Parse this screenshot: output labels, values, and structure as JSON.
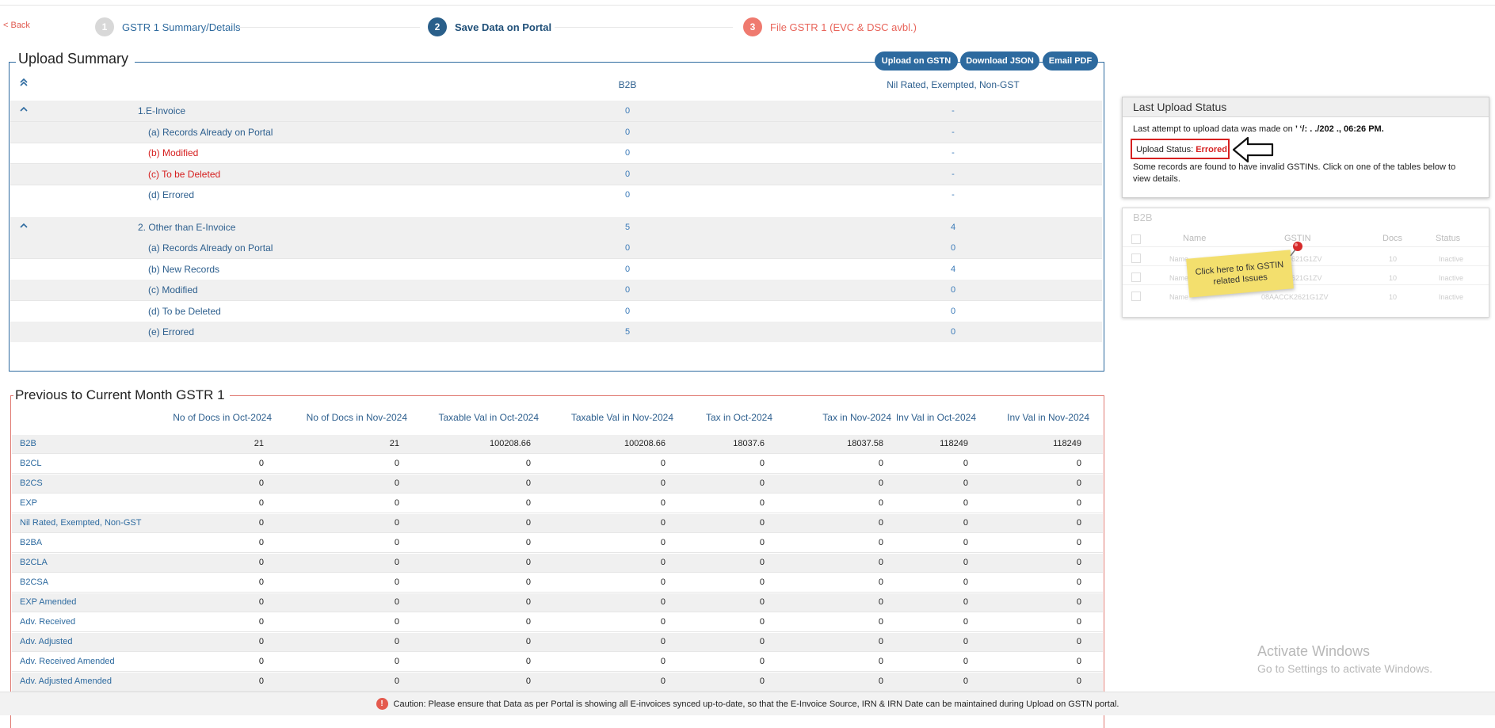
{
  "nav": {
    "back_label": "< Back",
    "steps": [
      {
        "num": "1",
        "label": "GSTR 1 Summary/Details"
      },
      {
        "num": "2",
        "label": "Save Data on Portal"
      },
      {
        "num": "3",
        "label": "File GSTR 1 (EVC & DSC avbl.)"
      }
    ]
  },
  "upload_summary": {
    "title": "Upload Summary",
    "buttons": {
      "upload": "Upload on GSTN",
      "download": "Download JSON",
      "email": "Email PDF"
    },
    "col1_header": "B2B",
    "col2_header": "Nil Rated, Exempted, Non-GST",
    "rows": [
      {
        "label": "1.E-Invoice",
        "v1": "0",
        "v2": "-"
      },
      {
        "label": "(a) Records Already on Portal",
        "v1": "0",
        "v2": "-"
      },
      {
        "label": "(b) Modified",
        "v1": "0",
        "v2": "-"
      },
      {
        "label": "(c) To be Deleted",
        "v1": "0",
        "v2": "-"
      },
      {
        "label": "(d) Errored",
        "v1": "0",
        "v2": "-"
      },
      {
        "label": "2. Other than E-Invoice",
        "v1": "5",
        "v2": "4"
      },
      {
        "label": "(a) Records Already on Portal",
        "v1": "0",
        "v2": "0"
      },
      {
        "label": "(b) New Records",
        "v1": "0",
        "v2": "4"
      },
      {
        "label": "(c) Modified",
        "v1": "0",
        "v2": "0"
      },
      {
        "label": "(d) To be Deleted",
        "v1": "0",
        "v2": "0"
      },
      {
        "label": "(e) Errored",
        "v1": "5",
        "v2": "0"
      }
    ]
  },
  "prev_month": {
    "title": "Previous to Current Month GSTR 1",
    "headers": [
      "No of Docs in Oct-2024",
      "No of Docs in Nov-2024",
      "Taxable Val in Oct-2024",
      "Taxable Val in Nov-2024",
      "Tax in Oct-2024",
      "Tax in Nov-2024",
      "Inv Val in Oct-2024",
      "Inv Val in Nov-2024"
    ],
    "rows": [
      {
        "label": "B2B",
        "cells": [
          "21",
          "21",
          "100208.66",
          "100208.66",
          "18037.6",
          "18037.58",
          "118249",
          "118249"
        ]
      },
      {
        "label": "B2CL",
        "cells": [
          "0",
          "0",
          "0",
          "0",
          "0",
          "0",
          "0",
          "0"
        ]
      },
      {
        "label": "B2CS",
        "cells": [
          "0",
          "0",
          "0",
          "0",
          "0",
          "0",
          "0",
          "0"
        ]
      },
      {
        "label": "EXP",
        "cells": [
          "0",
          "0",
          "0",
          "0",
          "0",
          "0",
          "0",
          "0"
        ]
      },
      {
        "label": "Nil Rated, Exempted, Non-GST",
        "cells": [
          "0",
          "0",
          "0",
          "0",
          "0",
          "0",
          "0",
          "0"
        ]
      },
      {
        "label": "B2BA",
        "cells": [
          "0",
          "0",
          "0",
          "0",
          "0",
          "0",
          "0",
          "0"
        ]
      },
      {
        "label": "B2CLA",
        "cells": [
          "0",
          "0",
          "0",
          "0",
          "0",
          "0",
          "0",
          "0"
        ]
      },
      {
        "label": "B2CSA",
        "cells": [
          "0",
          "0",
          "0",
          "0",
          "0",
          "0",
          "0",
          "0"
        ]
      },
      {
        "label": "EXP Amended",
        "cells": [
          "0",
          "0",
          "0",
          "0",
          "0",
          "0",
          "0",
          "0"
        ]
      },
      {
        "label": "Adv. Received",
        "cells": [
          "0",
          "0",
          "0",
          "0",
          "0",
          "0",
          "0",
          "0"
        ]
      },
      {
        "label": "Adv. Adjusted",
        "cells": [
          "0",
          "0",
          "0",
          "0",
          "0",
          "0",
          "0",
          "0"
        ]
      },
      {
        "label": "Adv. Received Amended",
        "cells": [
          "0",
          "0",
          "0",
          "0",
          "0",
          "0",
          "0",
          "0"
        ]
      },
      {
        "label": "Adv. Adjusted Amended",
        "cells": [
          "0",
          "0",
          "0",
          "0",
          "0",
          "0",
          "0",
          "0"
        ]
      }
    ]
  },
  "last_upload": {
    "title": "Last Upload Status",
    "line1_prefix": "Last attempt to upload data was made on",
    "line1_date": "’ ‘/: . ./202 ., 06:26 PM.",
    "status_label": "Upload Status:",
    "status_value": "Errored",
    "note": "Some records are found to have invalid GSTINs. Click on one of the tables below to view details."
  },
  "b2b_preview": {
    "title": "B2B",
    "headers": {
      "name": "Name",
      "gstin": "GSTIN",
      "docs": "Docs",
      "status": "Status"
    },
    "rows": [
      {
        "name": "Name",
        "gstin": "2621G1ZV",
        "docs": "10",
        "status": "Inactive"
      },
      {
        "name": "Name",
        "gstin": "2621G1ZV",
        "docs": "10",
        "status": "Inactive"
      },
      {
        "name": "Name",
        "gstin": "08AACCK2621G1ZV",
        "docs": "10",
        "status": "Inactive"
      }
    ],
    "sticky_note": "Click here to fix GSTIN related Issues"
  },
  "watermark": {
    "line1": "Activate Windows",
    "line2": "Go to Settings to activate Windows."
  },
  "caution": {
    "icon": "!",
    "text": "Caution: Please ensure that Data as per Portal is showing all E-invoices synced up-to-date, so that the E-Invoice Source, IRN & IRN Date can be maintained during Upload on GSTN portal."
  }
}
